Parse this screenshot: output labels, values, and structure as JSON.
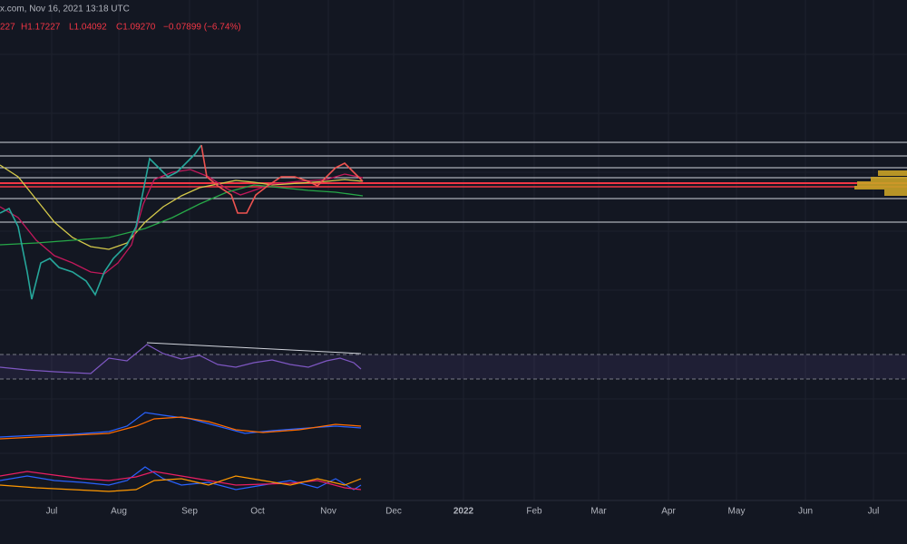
{
  "header": {
    "symbol_line": "x.com, Nov 16, 2021 13:18 UTC",
    "ohlc": {
      "open": "227",
      "high": "H1.17227",
      "low": "L1.04092",
      "close": "C1.09270",
      "change": "−0.07899 (−6.74%)"
    }
  },
  "x_axis": {
    "labels": [
      "Jul",
      "Aug",
      "Sep",
      "Oct",
      "Nov",
      "Dec",
      "2022",
      "Feb",
      "Mar",
      "Apr",
      "May",
      "Jun",
      "Jul"
    ]
  }
}
